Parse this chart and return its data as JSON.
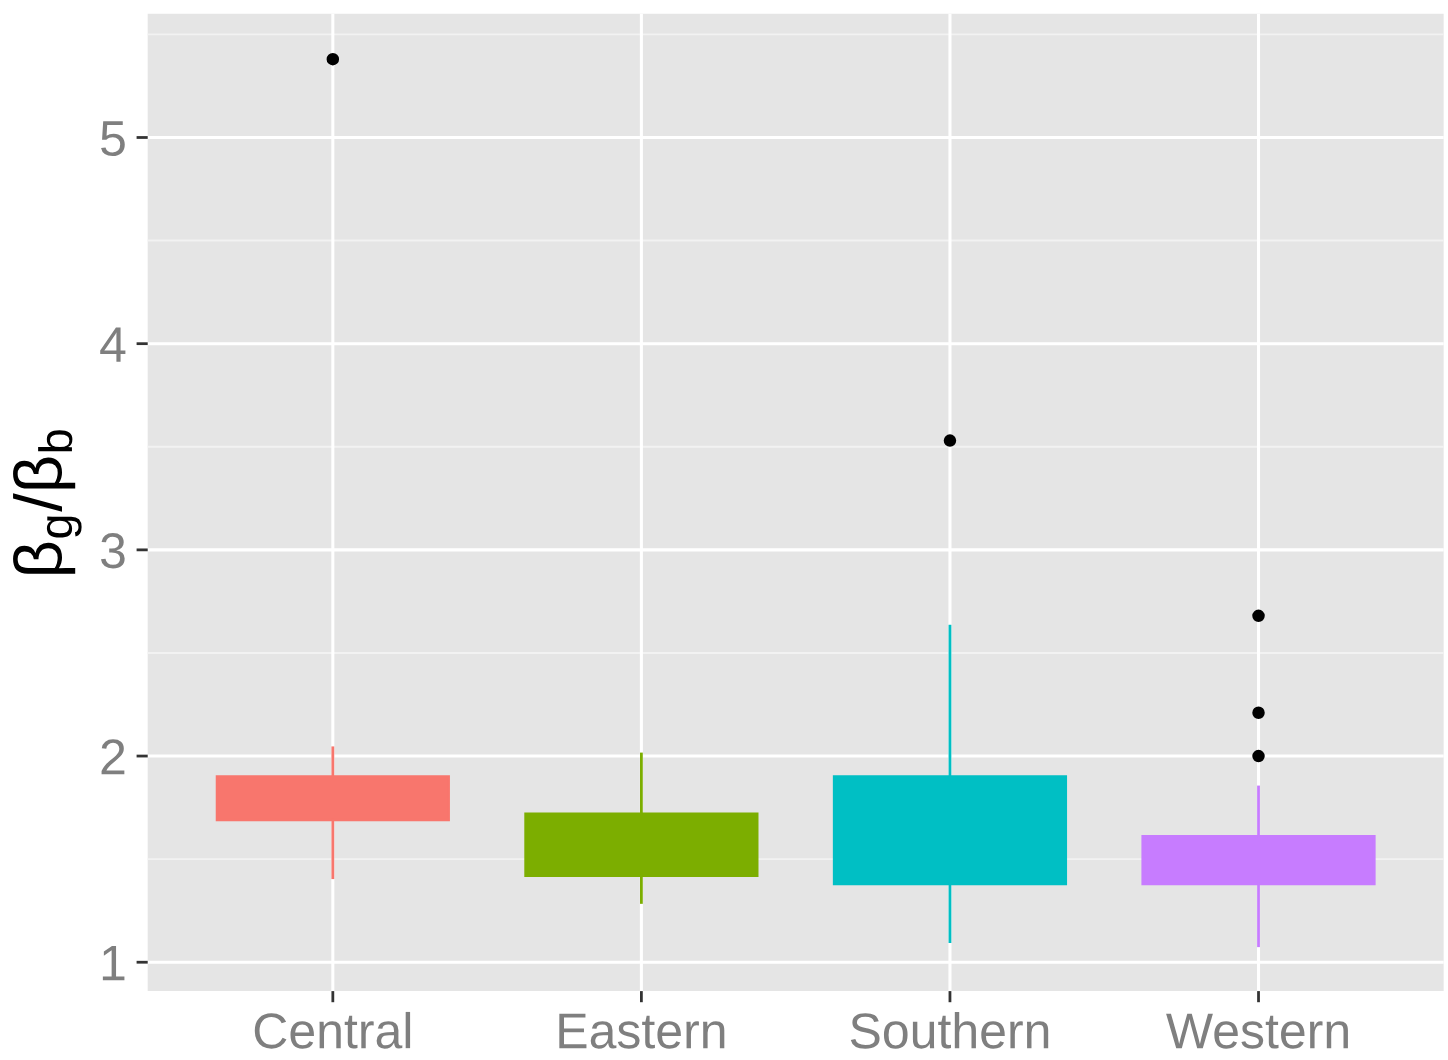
{
  "chart_data": {
    "type": "box",
    "ylabel": "β$_{g}$/β$_{b}$",
    "categories": [
      "Central",
      "Eastern",
      "Southern",
      "Western"
    ],
    "colors": [
      "#f8766d",
      "#7cae00",
      "#00bfc4",
      "#c77cff"
    ],
    "boxes": [
      {
        "low": 1.41,
        "q1": 1.69,
        "median": null,
        "q3": 1.9,
        "high": 2.04,
        "outliers": [
          5.38
        ]
      },
      {
        "low": 1.29,
        "q1": 1.42,
        "median": null,
        "q3": 1.72,
        "high": 2.01
      },
      {
        "low": 1.1,
        "q1": 1.38,
        "median": null,
        "q3": 1.9,
        "high": 2.63,
        "outliers": [
          3.53
        ]
      },
      {
        "low": 1.08,
        "q1": 1.38,
        "median": null,
        "q3": 1.61,
        "high": 1.85,
        "outliers": [
          2.0,
          2.21,
          2.68
        ]
      }
    ],
    "ylim": [
      0.86,
      5.6
    ],
    "yticks": [
      1,
      2,
      3,
      4,
      5
    ],
    "grid": true
  }
}
